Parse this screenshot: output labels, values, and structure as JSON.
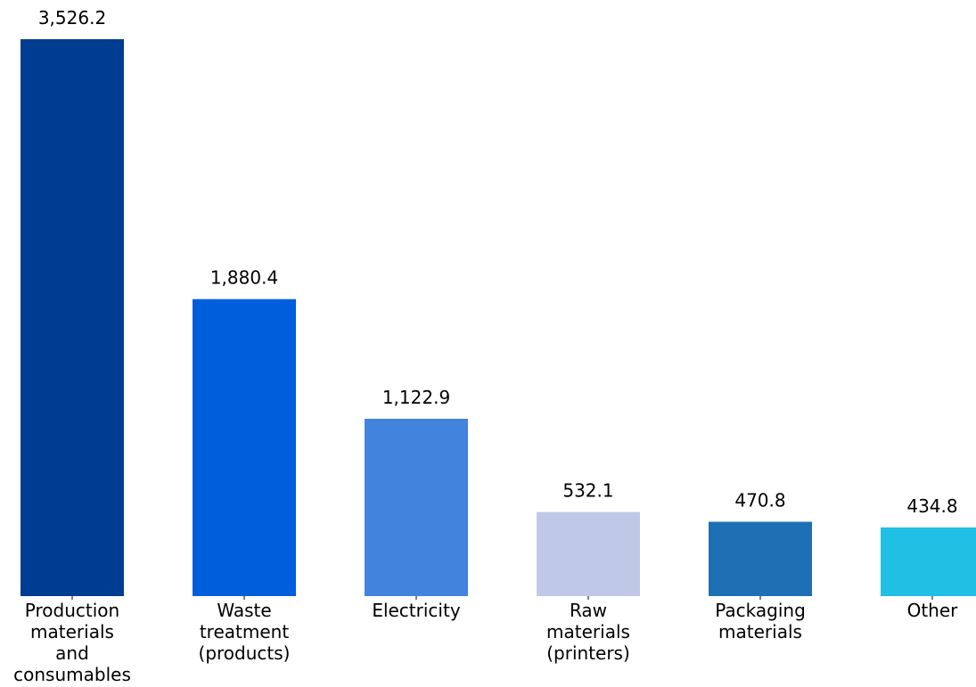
{
  "chart_data": {
    "type": "bar",
    "title": "",
    "xlabel": "",
    "ylabel": "",
    "categories": [
      [
        "Production",
        "materials",
        "and",
        "consumables"
      ],
      [
        "Waste",
        "treatment",
        "(products)"
      ],
      [
        "Electricity"
      ],
      [
        "Raw",
        "materials",
        "(printers)"
      ],
      [
        "Packaging",
        "materials"
      ],
      [
        "Other"
      ]
    ],
    "values": [
      3526.2,
      1880.4,
      1122.9,
      532.1,
      470.8,
      434.8
    ],
    "value_labels": [
      "3,526.2",
      "1,880.4",
      "1,122.9",
      "532.1",
      "470.8",
      "434.8"
    ],
    "colors": [
      "#003c90",
      "#005edd",
      "#4283dd",
      "#bfc9e7",
      "#1f6fb4",
      "#20bfe4"
    ],
    "ylim": [
      0,
      3526.2
    ],
    "grid": false,
    "legend": "none"
  }
}
